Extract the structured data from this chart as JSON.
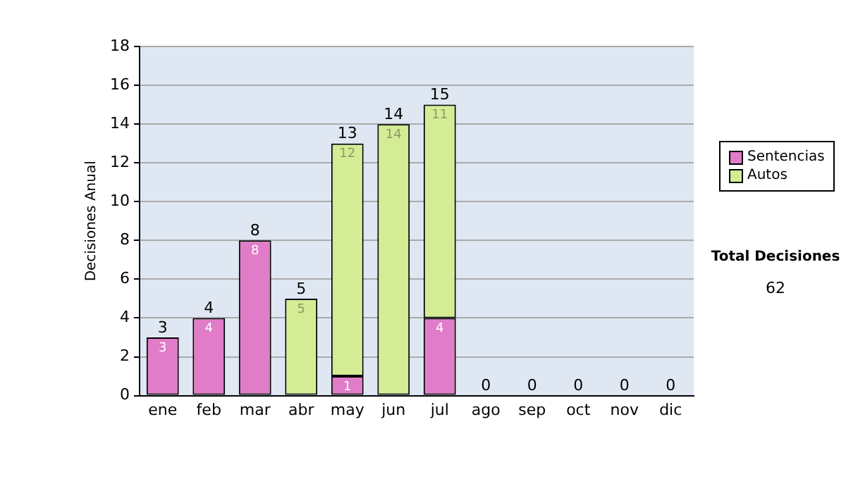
{
  "chart_data": {
    "type": "bar",
    "stacked": true,
    "ylabel": "Decisiones Anual",
    "categories": [
      "ene",
      "feb",
      "mar",
      "abr",
      "may",
      "jun",
      "jul",
      "ago",
      "sep",
      "oct",
      "nov",
      "dic"
    ],
    "series": [
      {
        "name": "Sentencias",
        "color": "#e07cc8",
        "values": [
          3,
          4,
          8,
          0,
          1,
          0,
          4,
          0,
          0,
          0,
          0,
          0
        ],
        "value_labels": [
          "3",
          "4",
          "8",
          null,
          "1",
          null,
          "4",
          null,
          null,
          null,
          null,
          null
        ]
      },
      {
        "name": "Autos",
        "color": "#d4ec94",
        "values": [
          0,
          0,
          0,
          5,
          12,
          14,
          11,
          0,
          0,
          0,
          0,
          0
        ],
        "value_labels": [
          null,
          null,
          null,
          "5",
          "12",
          "14",
          "11",
          null,
          null,
          null,
          null,
          null
        ]
      }
    ],
    "totals": [
      "3",
      "4",
      "8",
      "5",
      "13",
      "14",
      "15",
      "0",
      "0",
      "0",
      "0",
      "0"
    ],
    "ylim": [
      0,
      18
    ],
    "yticks": [
      0,
      2,
      4,
      6,
      8,
      10,
      12,
      14,
      16,
      18
    ],
    "grid": "y",
    "legend": "right",
    "annotations": [
      "Total Decisiones",
      "62"
    ]
  }
}
